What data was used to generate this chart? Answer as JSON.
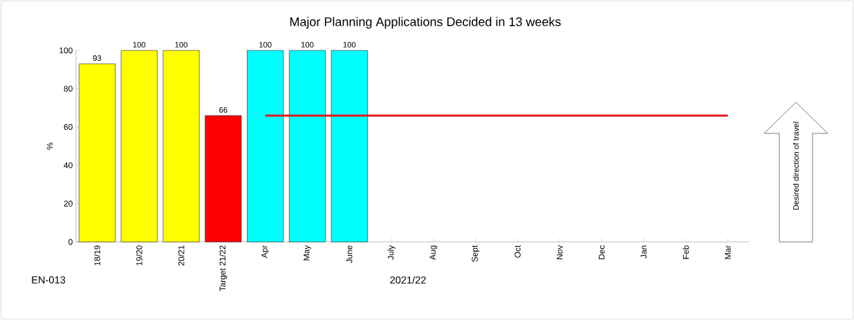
{
  "chart_data": {
    "type": "bar",
    "title": "Major Planning Applications Decided in 13 weeks",
    "ylabel": "%",
    "categories": [
      "18/19",
      "19/20",
      "20/21",
      "Target 21/22",
      "Apr",
      "May",
      "June",
      "July",
      "Aug",
      "Sept",
      "Oct",
      "Nov",
      "Dec",
      "Jan",
      "Feb",
      "Mar"
    ],
    "values": [
      93,
      100,
      100,
      66,
      100,
      100,
      100,
      null,
      null,
      null,
      null,
      null,
      null,
      null,
      null,
      null
    ],
    "colors": [
      "#ffff00",
      "#ffff00",
      "#ffff00",
      "#ff0000",
      "#00ffff",
      "#00ffff",
      "#00ffff",
      null,
      null,
      null,
      null,
      null,
      null,
      null,
      null,
      null
    ],
    "series": [
      {
        "type": "line",
        "color": "#e31a1c",
        "values": [
          null,
          null,
          null,
          null,
          66,
          66,
          66,
          66,
          66,
          66,
          66,
          66,
          66,
          66,
          66,
          66
        ]
      }
    ],
    "value_labels": [
      "93",
      "100",
      "100",
      "66",
      "100",
      "100",
      "100",
      null,
      null,
      null,
      null,
      null,
      null,
      null,
      null,
      null
    ],
    "ylim": [
      0,
      100
    ],
    "yticks": [
      0,
      20,
      40,
      60,
      80,
      100
    ],
    "grid": false,
    "annotations": [
      "EN-013",
      "2021/22",
      "Desired direction of travel"
    ]
  }
}
